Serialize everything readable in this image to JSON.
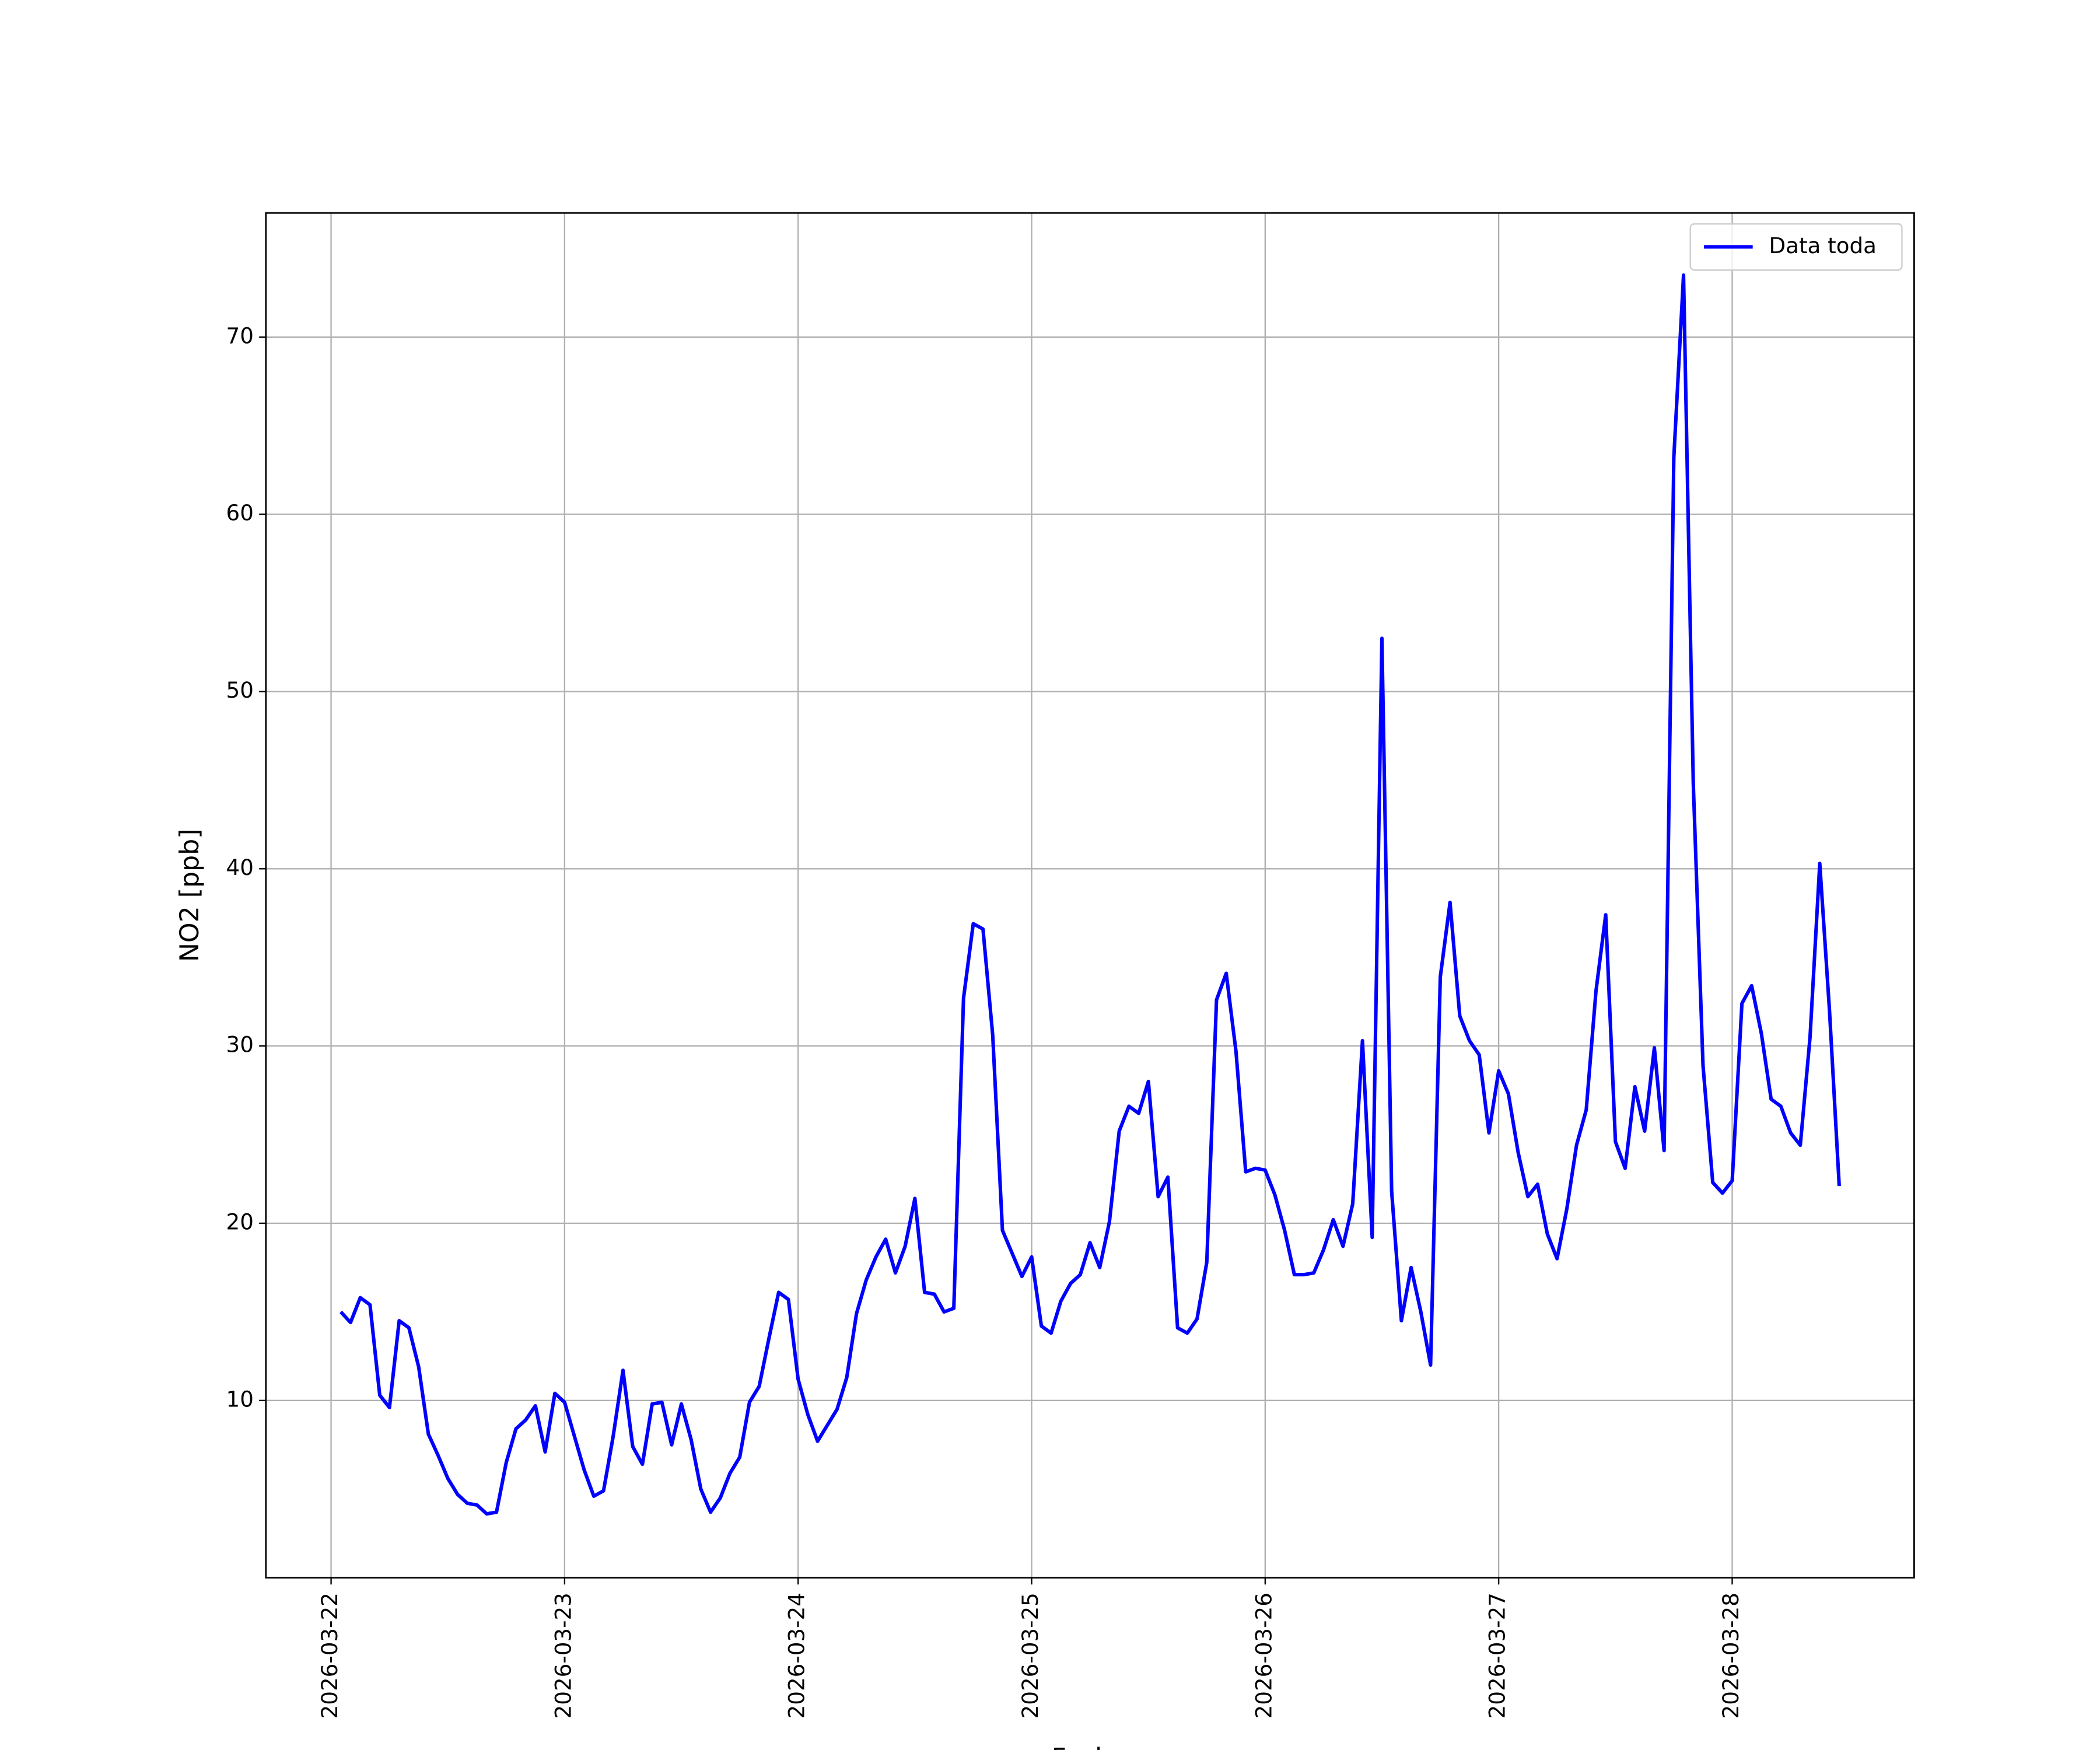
{
  "chart_data": {
    "type": "line",
    "xlabel": "Fecha",
    "ylabel": "NO2 [ppb]",
    "x": [
      "2026-03-22 01:00",
      "2026-03-22 02:00",
      "2026-03-22 03:00",
      "2026-03-22 04:00",
      "2026-03-22 05:00",
      "2026-03-22 06:00",
      "2026-03-22 07:00",
      "2026-03-22 08:00",
      "2026-03-22 09:00",
      "2026-03-22 10:00",
      "2026-03-22 11:00",
      "2026-03-22 12:00",
      "2026-03-22 13:00",
      "2026-03-22 14:00",
      "2026-03-22 15:00",
      "2026-03-22 16:00",
      "2026-03-22 17:00",
      "2026-03-22 18:00",
      "2026-03-22 19:00",
      "2026-03-22 20:00",
      "2026-03-22 21:00",
      "2026-03-22 22:00",
      "2026-03-22 23:00",
      "2026-03-23 00:00",
      "2026-03-23 01:00",
      "2026-03-23 02:00",
      "2026-03-23 03:00",
      "2026-03-23 04:00",
      "2026-03-23 05:00",
      "2026-03-23 06:00",
      "2026-03-23 07:00",
      "2026-03-23 08:00",
      "2026-03-23 09:00",
      "2026-03-23 10:00",
      "2026-03-23 11:00",
      "2026-03-23 12:00",
      "2026-03-23 13:00",
      "2026-03-23 14:00",
      "2026-03-23 15:00",
      "2026-03-23 16:00",
      "2026-03-23 17:00",
      "2026-03-23 18:00",
      "2026-03-23 19:00",
      "2026-03-23 20:00",
      "2026-03-23 21:00",
      "2026-03-23 22:00",
      "2026-03-23 23:00",
      "2026-03-24 00:00",
      "2026-03-24 01:00",
      "2026-03-24 02:00",
      "2026-03-24 03:00",
      "2026-03-24 04:00",
      "2026-03-24 05:00",
      "2026-03-24 06:00",
      "2026-03-24 07:00",
      "2026-03-24 08:00",
      "2026-03-24 09:00",
      "2026-03-24 10:00",
      "2026-03-24 11:00",
      "2026-03-24 12:00",
      "2026-03-24 13:00",
      "2026-03-24 14:00",
      "2026-03-24 15:00",
      "2026-03-24 16:00",
      "2026-03-24 17:00",
      "2026-03-24 18:00",
      "2026-03-24 19:00",
      "2026-03-24 20:00",
      "2026-03-24 21:00",
      "2026-03-24 22:00",
      "2026-03-24 23:00",
      "2026-03-25 00:00",
      "2026-03-25 01:00",
      "2026-03-25 02:00",
      "2026-03-25 03:00",
      "2026-03-25 04:00",
      "2026-03-25 05:00",
      "2026-03-25 06:00",
      "2026-03-25 07:00",
      "2026-03-25 08:00",
      "2026-03-25 09:00",
      "2026-03-25 10:00",
      "2026-03-25 11:00",
      "2026-03-25 12:00",
      "2026-03-25 13:00",
      "2026-03-25 14:00",
      "2026-03-25 15:00",
      "2026-03-25 16:00",
      "2026-03-25 17:00",
      "2026-03-25 18:00",
      "2026-03-25 19:00",
      "2026-03-25 20:00",
      "2026-03-25 21:00",
      "2026-03-25 22:00",
      "2026-03-25 23:00",
      "2026-03-26 00:00",
      "2026-03-26 01:00",
      "2026-03-26 02:00",
      "2026-03-26 03:00",
      "2026-03-26 04:00",
      "2026-03-26 05:00",
      "2026-03-26 06:00",
      "2026-03-26 07:00",
      "2026-03-26 08:00",
      "2026-03-26 09:00",
      "2026-03-26 10:00",
      "2026-03-26 11:00",
      "2026-03-26 12:00",
      "2026-03-26 13:00",
      "2026-03-26 14:00",
      "2026-03-26 15:00",
      "2026-03-26 16:00",
      "2026-03-26 17:00",
      "2026-03-26 18:00",
      "2026-03-26 19:00",
      "2026-03-26 20:00",
      "2026-03-26 21:00",
      "2026-03-26 22:00",
      "2026-03-26 23:00",
      "2026-03-27 00:00",
      "2026-03-27 01:00",
      "2026-03-27 02:00",
      "2026-03-27 03:00",
      "2026-03-27 04:00",
      "2026-03-27 05:00",
      "2026-03-27 06:00",
      "2026-03-27 07:00",
      "2026-03-27 08:00",
      "2026-03-27 09:00",
      "2026-03-27 10:00",
      "2026-03-27 11:00",
      "2026-03-27 12:00",
      "2026-03-27 13:00",
      "2026-03-27 14:00",
      "2026-03-27 15:00",
      "2026-03-27 16:00",
      "2026-03-27 17:00",
      "2026-03-27 18:00",
      "2026-03-27 19:00",
      "2026-03-27 20:00",
      "2026-03-27 21:00",
      "2026-03-27 22:00",
      "2026-03-27 23:00",
      "2026-03-28 00:00",
      "2026-03-28 01:00",
      "2026-03-28 02:00",
      "2026-03-28 03:00",
      "2026-03-28 04:00",
      "2026-03-28 05:00",
      "2026-03-28 06:00",
      "2026-03-28 07:00",
      "2026-03-28 08:00",
      "2026-03-28 09:00",
      "2026-03-28 10:00",
      "2026-03-28 11:00"
    ],
    "series": [
      {
        "name": "Data toda",
        "color": "#0000ff",
        "values": [
          15.0,
          14.4,
          15.8,
          15.4,
          10.3,
          9.6,
          14.5,
          14.1,
          11.9,
          8.1,
          6.9,
          5.6,
          4.7,
          4.2,
          4.1,
          3.6,
          3.7,
          6.5,
          8.4,
          8.9,
          9.7,
          7.1,
          10.4,
          9.9,
          8.0,
          6.1,
          4.6,
          4.9,
          8.0,
          11.7,
          7.4,
          6.4,
          9.8,
          9.9,
          7.5,
          9.8,
          7.8,
          5.0,
          3.7,
          4.5,
          5.9,
          6.8,
          9.9,
          10.8,
          13.5,
          16.1,
          15.7,
          11.2,
          9.2,
          7.7,
          8.6,
          9.5,
          11.3,
          14.9,
          16.8,
          18.1,
          19.1,
          17.2,
          18.7,
          21.4,
          16.1,
          16.0,
          15.0,
          15.2,
          32.7,
          36.9,
          36.6,
          30.6,
          19.6,
          18.3,
          17.0,
          18.1,
          14.2,
          13.8,
          15.6,
          16.6,
          17.1,
          18.9,
          17.5,
          20.1,
          25.2,
          26.6,
          26.2,
          28.0,
          21.5,
          22.6,
          14.1,
          13.8,
          14.6,
          17.8,
          32.6,
          34.1,
          29.7,
          22.9,
          23.1,
          23.0,
          21.6,
          19.6,
          17.1,
          17.1,
          17.2,
          18.5,
          20.2,
          18.7,
          21.1,
          30.3,
          19.2,
          53.0,
          21.8,
          14.5,
          17.5,
          15.0,
          12.0,
          33.9,
          38.1,
          31.7,
          30.3,
          29.5,
          25.1,
          28.6,
          27.3,
          24.0,
          21.5,
          22.2,
          19.4,
          18.0,
          20.8,
          24.4,
          26.4,
          33.1,
          37.4,
          24.6,
          23.1,
          27.7,
          25.2,
          29.9,
          24.1,
          63.2,
          73.5,
          44.8,
          28.9,
          22.3,
          21.7,
          22.4,
          32.4,
          33.4,
          30.7,
          27.0,
          26.6,
          25.1,
          24.4,
          30.5,
          40.3,
          32.0,
          22.1
        ]
      }
    ],
    "xlim": [
      "2026-03-21 17:18",
      "2026-03-28 18:42"
    ],
    "xticks": [
      "2026-03-22",
      "2026-03-23",
      "2026-03-24",
      "2026-03-25",
      "2026-03-26",
      "2026-03-27",
      "2026-03-28"
    ],
    "ylim": [
      0,
      77
    ],
    "yticks": [
      10,
      20,
      30,
      40,
      50,
      60,
      70
    ],
    "grid": true,
    "legend": "upper right"
  }
}
